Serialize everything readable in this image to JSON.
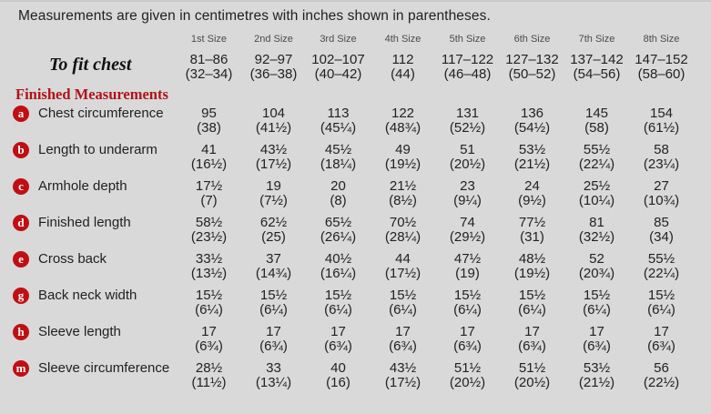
{
  "intro": "Measurements are given in centimetres with inches shown in parentheses.",
  "size_headers": [
    "1st Size",
    "2nd Size",
    "3rd Size",
    "4th Size",
    "5th Size",
    "6th Size",
    "7th Size",
    "8th Size"
  ],
  "to_fit_chest": {
    "label": "To fit chest",
    "cm": [
      "81–86",
      "92–97",
      "102–107",
      "112",
      "117–122",
      "127–132",
      "137–142",
      "147–152"
    ],
    "in": [
      "(32–34)",
      "(36–38)",
      "(40–42)",
      "(44)",
      "(46–48)",
      "(50–52)",
      "(54–56)",
      "(58–60)"
    ]
  },
  "section_title": "Finished Measurements",
  "rows": [
    {
      "key": "a",
      "label": "Chest circumference",
      "cm": [
        "95",
        "104",
        "113",
        "122",
        "131",
        "136",
        "145",
        "154"
      ],
      "in": [
        "(38)",
        "(41½)",
        "(45¼)",
        "(48¾)",
        "(52½)",
        "(54½)",
        "(58)",
        "(61½)"
      ]
    },
    {
      "key": "b",
      "label": "Length to underarm",
      "cm": [
        "41",
        "43½",
        "45½",
        "49",
        "51",
        "53½",
        "55½",
        "58"
      ],
      "in": [
        "(16½)",
        "(17½)",
        "(18¼)",
        "(19½)",
        "(20½)",
        "(21½)",
        "(22¼)",
        "(23¼)"
      ]
    },
    {
      "key": "c",
      "label": "Armhole depth",
      "cm": [
        "17½",
        "19",
        "20",
        "21½",
        "23",
        "24",
        "25½",
        "27"
      ],
      "in": [
        "(7)",
        "(7½)",
        "(8)",
        "(8½)",
        "(9¼)",
        "(9½)",
        "(10¼)",
        "(10¾)"
      ]
    },
    {
      "key": "d",
      "label": "Finished length",
      "cm": [
        "58½",
        "62½",
        "65½",
        "70½",
        "74",
        "77½",
        "81",
        "85"
      ],
      "in": [
        "(23½)",
        "(25)",
        "(26¼)",
        "(28¼)",
        "(29½)",
        "(31)",
        "(32½)",
        "(34)"
      ]
    },
    {
      "key": "e",
      "label": "Cross back",
      "cm": [
        "33½",
        "37",
        "40½",
        "44",
        "47½",
        "48½",
        "52",
        "55½"
      ],
      "in": [
        "(13½)",
        "(14¾)",
        "(16¼)",
        "(17½)",
        "(19)",
        "(19½)",
        "(20¾)",
        "(22¼)"
      ]
    },
    {
      "key": "g",
      "label": "Back neck width",
      "cm": [
        "15½",
        "15½",
        "15½",
        "15½",
        "15½",
        "15½",
        "15½",
        "15½"
      ],
      "in": [
        "(6¼)",
        "(6¼)",
        "(6¼)",
        "(6¼)",
        "(6¼)",
        "(6¼)",
        "(6¼)",
        "(6¼)"
      ]
    },
    {
      "key": "h",
      "label": "Sleeve length",
      "cm": [
        "17",
        "17",
        "17",
        "17",
        "17",
        "17",
        "17",
        "17"
      ],
      "in": [
        "(6¾)",
        "(6¾)",
        "(6¾)",
        "(6¾)",
        "(6¾)",
        "(6¾)",
        "(6¾)",
        "(6¾)"
      ]
    },
    {
      "key": "m",
      "label": "Sleeve circumference",
      "cm": [
        "28½",
        "33",
        "40",
        "43½",
        "51½",
        "51½",
        "53½",
        "56"
      ],
      "in": [
        "(11½)",
        "(13¼)",
        "(16)",
        "(17½)",
        "(20½)",
        "(20½)",
        "(21½)",
        "(22½)"
      ]
    }
  ],
  "colors": {
    "background": "#d9d9d9",
    "accent_red": "#b11219",
    "badge_red": "#c00f14",
    "text": "#1f1f1f",
    "header_gray": "#4b4b4b"
  }
}
